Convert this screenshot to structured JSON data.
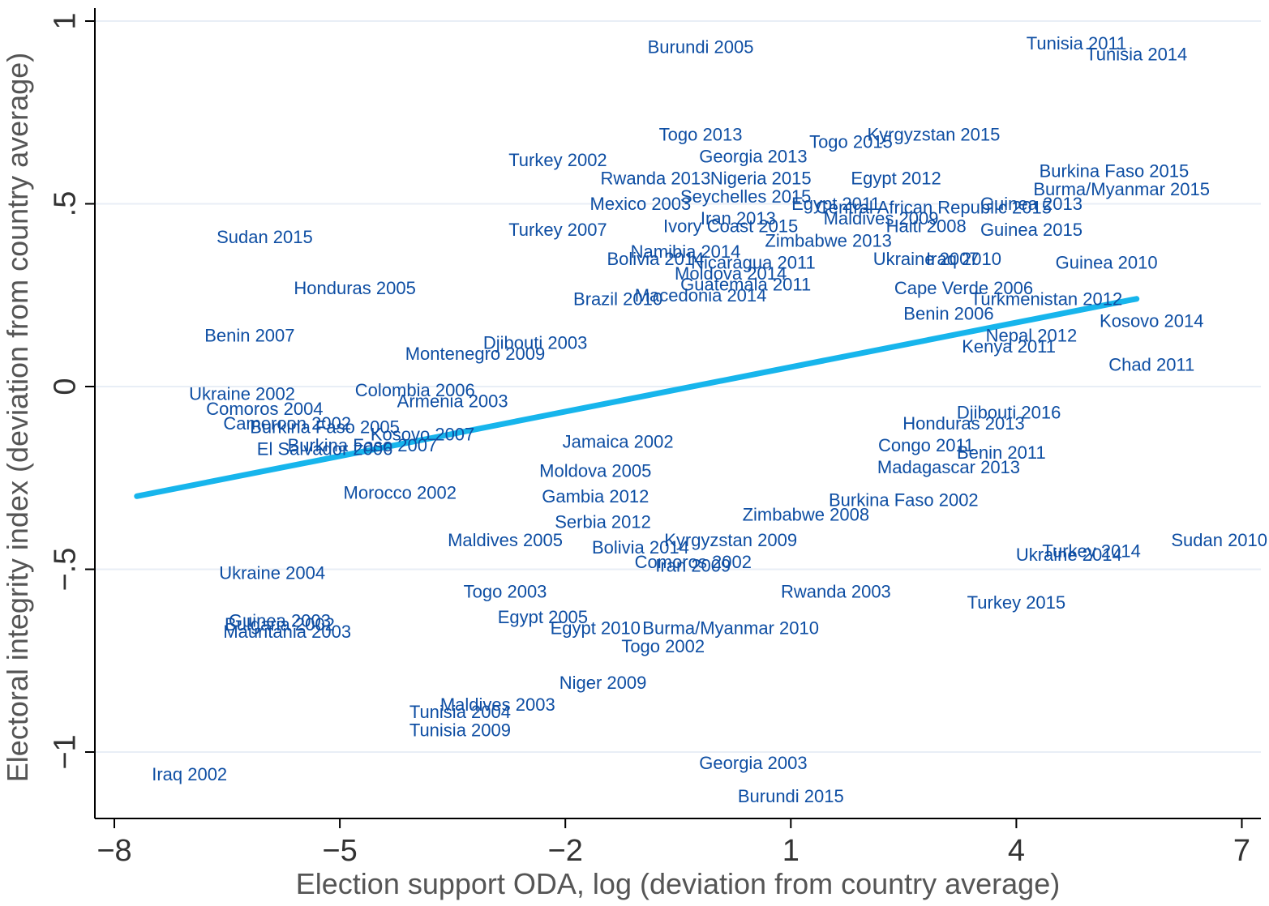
{
  "chart_data": {
    "type": "scatter",
    "title": "",
    "xlabel": "Election support ODA, log (deviation from country average)",
    "ylabel": "Electoral integrity index (deviation from country average)",
    "xlim": [
      -8.2,
      7.2
    ],
    "ylim": [
      -1.18,
      1.05
    ],
    "xticks": [
      -8,
      -5,
      -2,
      1,
      4,
      7
    ],
    "yticks": [
      -1,
      -0.5,
      0,
      0.5,
      1
    ],
    "xtick_labels": [
      "−8",
      "−5",
      "−2",
      "1",
      "4",
      "7"
    ],
    "ytick_labels": [
      "−1",
      "−.5",
      "0",
      ".5",
      "1"
    ],
    "grid": "horizontal",
    "colors": {
      "points": "#0e4ea3",
      "fit_line": "#17b5ec",
      "grid": "#e8eef6"
    },
    "fit_line": {
      "x": [
        -7.7,
        5.6
      ],
      "y": [
        -0.3,
        0.24
      ]
    },
    "labeled_points": [
      {
        "label": "Burundi 2005",
        "x": -0.2,
        "y": 0.93
      },
      {
        "label": "Tunisia 2011",
        "x": 4.8,
        "y": 0.94
      },
      {
        "label": "Tunisia 2014",
        "x": 5.6,
        "y": 0.91
      },
      {
        "label": "Togo 2013",
        "x": -0.2,
        "y": 0.69
      },
      {
        "label": "Togo 2015",
        "x": 1.8,
        "y": 0.67
      },
      {
        "label": "Kyrgyzstan 2015",
        "x": 2.9,
        "y": 0.69
      },
      {
        "label": "Georgia 2013",
        "x": 0.5,
        "y": 0.63
      },
      {
        "label": "Turkey 2002",
        "x": -2.1,
        "y": 0.62
      },
      {
        "label": "Egypt 2012",
        "x": 2.4,
        "y": 0.57
      },
      {
        "label": "Burkina Faso 2015",
        "x": 5.3,
        "y": 0.59
      },
      {
        "label": "Rwanda 2013",
        "x": -0.8,
        "y": 0.57
      },
      {
        "label": "Nigeria 2015",
        "x": 0.6,
        "y": 0.57
      },
      {
        "label": "Burma/Myanmar 2015",
        "x": 5.4,
        "y": 0.54
      },
      {
        "label": "Seychelles 2015",
        "x": 0.4,
        "y": 0.52
      },
      {
        "label": "Mexico 2003",
        "x": -1.0,
        "y": 0.5
      },
      {
        "label": "Egypt 2011",
        "x": 1.6,
        "y": 0.5
      },
      {
        "label": "Guinea 2013",
        "x": 4.2,
        "y": 0.5
      },
      {
        "label": "Central African Republic 2015",
        "x": 2.9,
        "y": 0.49
      },
      {
        "label": "Maldives 2009",
        "x": 2.2,
        "y": 0.46
      },
      {
        "label": "Iran 2013",
        "x": 0.3,
        "y": 0.46
      },
      {
        "label": "Ivory Coast 2015",
        "x": 0.2,
        "y": 0.44
      },
      {
        "label": "Haiti 2008",
        "x": 2.8,
        "y": 0.44
      },
      {
        "label": "Guinea 2015",
        "x": 4.2,
        "y": 0.43
      },
      {
        "label": "Sudan 2015",
        "x": -6.0,
        "y": 0.41
      },
      {
        "label": "Turkey 2007",
        "x": -2.1,
        "y": 0.43
      },
      {
        "label": "Zimbabwe 2013",
        "x": 1.5,
        "y": 0.4
      },
      {
        "label": "Namibia 2014",
        "x": -0.4,
        "y": 0.37
      },
      {
        "label": "Bolivia 2014",
        "x": -0.8,
        "y": 0.35
      },
      {
        "label": "Nicaragua 2011",
        "x": 0.5,
        "y": 0.34
      },
      {
        "label": "Ukraine 2007",
        "x": 2.8,
        "y": 0.35
      },
      {
        "label": "Iraq 2010",
        "x": 3.3,
        "y": 0.35
      },
      {
        "label": "Guinea 2010",
        "x": 5.2,
        "y": 0.34
      },
      {
        "label": "Moldova 2014",
        "x": 0.2,
        "y": 0.31
      },
      {
        "label": "Honduras 2005",
        "x": -4.8,
        "y": 0.27
      },
      {
        "label": "Guatemala 2011",
        "x": 0.4,
        "y": 0.28
      },
      {
        "label": "Cape Verde 2006",
        "x": 3.3,
        "y": 0.27
      },
      {
        "label": "Brazil 2010",
        "x": -1.3,
        "y": 0.24
      },
      {
        "label": "Macedonia 2014",
        "x": -0.2,
        "y": 0.25
      },
      {
        "label": "Turkmenistan 2012",
        "x": 4.4,
        "y": 0.24
      },
      {
        "label": "Kosovo 2014",
        "x": 5.8,
        "y": 0.18
      },
      {
        "label": "Benin 2007",
        "x": -6.2,
        "y": 0.14
      },
      {
        "label": "Benin 2006",
        "x": 3.1,
        "y": 0.2
      },
      {
        "label": "Djibouti 2003",
        "x": -2.4,
        "y": 0.12
      },
      {
        "label": "Montenegro 2009",
        "x": -3.2,
        "y": 0.09
      },
      {
        "label": "Nepal 2012",
        "x": 4.2,
        "y": 0.14
      },
      {
        "label": "Kenya 2011",
        "x": 3.9,
        "y": 0.11
      },
      {
        "label": "Chad 2011",
        "x": 5.8,
        "y": 0.06
      },
      {
        "label": "Ukraine 2002",
        "x": -6.3,
        "y": -0.02
      },
      {
        "label": "Colombia 2006",
        "x": -4.0,
        "y": -0.01
      },
      {
        "label": "Comoros 2004",
        "x": -6.0,
        "y": -0.06
      },
      {
        "label": "Armenia 2003",
        "x": -3.5,
        "y": -0.04
      },
      {
        "label": "Djibouti 2016",
        "x": 3.9,
        "y": -0.07
      },
      {
        "label": "Cameroon 2002",
        "x": -5.7,
        "y": -0.1
      },
      {
        "label": "Burkina Faso 2005",
        "x": -5.2,
        "y": -0.11
      },
      {
        "label": "Kosovo 2007",
        "x": -3.9,
        "y": -0.13
      },
      {
        "label": "Honduras 2013",
        "x": 3.3,
        "y": -0.1
      },
      {
        "label": "Jamaica 2002",
        "x": -1.3,
        "y": -0.15
      },
      {
        "label": "El Salvador 2006",
        "x": -5.2,
        "y": -0.17
      },
      {
        "label": "Burkina Faso 2007",
        "x": -4.7,
        "y": -0.16
      },
      {
        "label": "Congo 2011",
        "x": 2.8,
        "y": -0.16
      },
      {
        "label": "Benin 2011",
        "x": 3.8,
        "y": -0.18
      },
      {
        "label": "Madagascar 2013",
        "x": 3.1,
        "y": -0.22
      },
      {
        "label": "Moldova 2005",
        "x": -1.6,
        "y": -0.23
      },
      {
        "label": "Morocco 2002",
        "x": -4.2,
        "y": -0.29
      },
      {
        "label": "Gambia 2012",
        "x": -1.6,
        "y": -0.3
      },
      {
        "label": "Burkina Faso 2002",
        "x": 2.5,
        "y": -0.31
      },
      {
        "label": "Zimbabwe 2008",
        "x": 1.2,
        "y": -0.35
      },
      {
        "label": "Serbia 2012",
        "x": -1.5,
        "y": -0.37
      },
      {
        "label": "Maldives 2005",
        "x": -2.8,
        "y": -0.42
      },
      {
        "label": "Kyrgyzstan 2009",
        "x": 0.2,
        "y": -0.42
      },
      {
        "label": "Bolivia 2014",
        "x": -1.0,
        "y": -0.44
      },
      {
        "label": "Turkey 2014",
        "x": 5.0,
        "y": -0.45
      },
      {
        "label": "Ukraine 2014",
        "x": 4.7,
        "y": -0.46
      },
      {
        "label": "Sudan 2010",
        "x": 6.7,
        "y": -0.42
      },
      {
        "label": "Comoros 2002",
        "x": -0.3,
        "y": -0.48
      },
      {
        "label": "Iran 2009",
        "x": -0.3,
        "y": -0.49
      },
      {
        "label": "Ukraine 2004",
        "x": -5.9,
        "y": -0.51
      },
      {
        "label": "Togo 2003",
        "x": -2.8,
        "y": -0.56
      },
      {
        "label": "Rwanda 2003",
        "x": 1.6,
        "y": -0.56
      },
      {
        "label": "Turkey 2015",
        "x": 4.0,
        "y": -0.59
      },
      {
        "label": "Guinea 2003",
        "x": -5.8,
        "y": -0.64
      },
      {
        "label": "Egypt 2005",
        "x": -2.3,
        "y": -0.63
      },
      {
        "label": "Bulgaria 2002",
        "x": -5.8,
        "y": -0.65
      },
      {
        "label": "Mauritania 2003",
        "x": -5.7,
        "y": -0.67
      },
      {
        "label": "Egypt 2010",
        "x": -1.6,
        "y": -0.66
      },
      {
        "label": "Burma/Myanmar 2010",
        "x": 0.2,
        "y": -0.66
      },
      {
        "label": "Togo 2002",
        "x": -0.7,
        "y": -0.71
      },
      {
        "label": "Niger 2009",
        "x": -1.5,
        "y": -0.81
      },
      {
        "label": "Maldives 2003",
        "x": -2.9,
        "y": -0.87
      },
      {
        "label": "Tunisia 2004",
        "x": -3.4,
        "y": -0.89
      },
      {
        "label": "Tunisia 2009",
        "x": -3.4,
        "y": -0.94
      },
      {
        "label": "Iraq 2002",
        "x": -7.0,
        "y": -1.06
      },
      {
        "label": "Georgia 2003",
        "x": 0.5,
        "y": -1.03
      },
      {
        "label": "Burundi 2015",
        "x": 1.0,
        "y": -1.12
      }
    ]
  }
}
